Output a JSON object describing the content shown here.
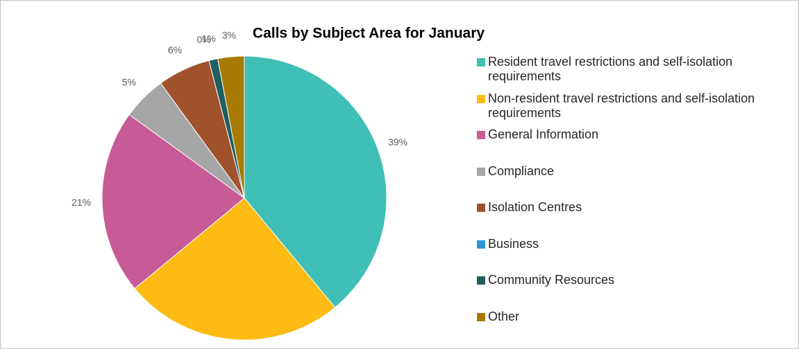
{
  "chart_data": {
    "type": "pie",
    "title": "Calls by Subject Area for January",
    "categories": [
      "Resident travel restrictions and self-isolation requirements",
      "Non-resident travel restrictions and self-isolation requirements",
      "General Information",
      "Compliance",
      "Isolation Centres",
      "Business",
      "Community Resources",
      "Other"
    ],
    "values": [
      39,
      25,
      21,
      5,
      6,
      0,
      1,
      3
    ],
    "value_labels": [
      "39%",
      "25%",
      "21%",
      "5%",
      "6%",
      "0%",
      "1%",
      "3%"
    ],
    "colors": [
      "#40bfb6",
      "#fdbb13",
      "#c75b98",
      "#a6a6a6",
      "#a0522d",
      "#2e95d3",
      "#1f5f5f",
      "#a77a06"
    ],
    "legend": "right"
  }
}
